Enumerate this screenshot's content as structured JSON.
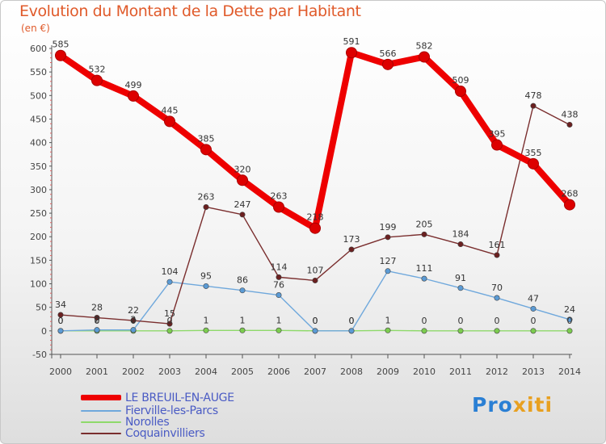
{
  "title": "Evolution du Montant de la Dette par Habitant",
  "unit": "(en €)",
  "logo": {
    "text": "Proxiti",
    "part1": "Pro",
    "part2": "xiti"
  },
  "chart_data": {
    "type": "line",
    "title": "Evolution du Montant de la Dette par Habitant",
    "ylabel": "(en €)",
    "xlabel": "",
    "ylim": [
      -50,
      600
    ],
    "yticks": [
      -50,
      0,
      50,
      100,
      150,
      200,
      250,
      300,
      350,
      400,
      450,
      500,
      550,
      600
    ],
    "grid": false,
    "legend_position": "bottom-left",
    "x": [
      "2000",
      "2001",
      "2002",
      "2003",
      "2004",
      "2005",
      "2006",
      "2007",
      "2008",
      "2009",
      "2010",
      "2011",
      "2012",
      "2013",
      "2014"
    ],
    "series": [
      {
        "name": "LE BREUIL-EN-AUGE",
        "color": "#ee0000",
        "marker": "#dd0000",
        "emphasis": true,
        "values": [
          585,
          532,
          499,
          445,
          385,
          320,
          263,
          218,
          591,
          566,
          582,
          509,
          395,
          355,
          268
        ]
      },
      {
        "name": "Fierville-les-Parcs",
        "color": "#6fa8dc",
        "marker": "#5b9bd5",
        "emphasis": false,
        "values": [
          0,
          2,
          2,
          104,
          95,
          86,
          76,
          0,
          0,
          127,
          111,
          91,
          70,
          47,
          24
        ]
      },
      {
        "name": "Norolles",
        "color": "#8ed96a",
        "marker": "#7ccc4f",
        "emphasis": false,
        "values": [
          0,
          0,
          0,
          0,
          1,
          1,
          1,
          0,
          0,
          1,
          0,
          0,
          0,
          0,
          0
        ]
      },
      {
        "name": "Coquainvilliers",
        "color": "#7a2e2e",
        "marker": "#6b2020",
        "emphasis": false,
        "values": [
          34,
          28,
          22,
          15,
          263,
          247,
          114,
          107,
          173,
          199,
          205,
          184,
          161,
          478,
          438
        ]
      }
    ]
  }
}
